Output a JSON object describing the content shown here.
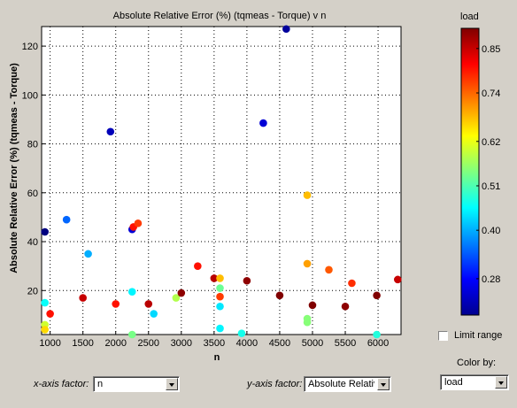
{
  "plot": {
    "title": "Absolute Relative Error (%) (tqmeas - Torque) v n",
    "xlabel": "n",
    "ylabel": "Absolute Relative Error (%) (tqmeas - Torque)"
  },
  "colorbar": {
    "title": "load",
    "range": [
      0.19,
      0.9
    ],
    "ticks": [
      0.28,
      0.4,
      0.51,
      0.62,
      0.74,
      0.85
    ],
    "tick_labels": [
      "0.28",
      "0.40",
      "0.51",
      "0.62",
      "0.74",
      "0.85"
    ]
  },
  "controls": {
    "limit_range_label": "Limit range",
    "limit_range_checked": false,
    "color_by_label": "Color by:",
    "color_by_value": "load",
    "x_factor_label": "x-axis factor:",
    "x_factor_value": "n",
    "y_factor_label": "y-axis factor:",
    "y_factor_value": "Absolute Relative Error (%) (tqmeas - Torque)"
  },
  "chart_data": {
    "type": "scatter",
    "title": "Absolute Relative Error (%) (tqmeas - Torque) v n",
    "xlabel": "n",
    "ylabel": "Absolute Relative Error (%) (tqmeas - Torque)",
    "xlim": [
      870,
      6350
    ],
    "ylim": [
      2,
      128
    ],
    "xticks": [
      1000,
      1500,
      2000,
      2500,
      3000,
      3500,
      4000,
      4500,
      5000,
      5500,
      6000
    ],
    "yticks": [
      20,
      40,
      60,
      80,
      100,
      120
    ],
    "grid": true,
    "color_variable": "load",
    "points": [
      {
        "x": 920,
        "y": 44,
        "load": 0.19
      },
      {
        "x": 920,
        "y": 15,
        "load": 0.46
      },
      {
        "x": 920,
        "y": 6,
        "load": 0.6
      },
      {
        "x": 920,
        "y": 4,
        "load": 0.66
      },
      {
        "x": 1000,
        "y": 10.5,
        "load": 0.8
      },
      {
        "x": 1250,
        "y": 49,
        "load": 0.35
      },
      {
        "x": 1500,
        "y": 17,
        "load": 0.85
      },
      {
        "x": 1580,
        "y": 35,
        "load": 0.4
      },
      {
        "x": 1920,
        "y": 85,
        "load": 0.23
      },
      {
        "x": 2000,
        "y": 14.5,
        "load": 0.8
      },
      {
        "x": 2250,
        "y": 45,
        "load": 0.25
      },
      {
        "x": 2250,
        "y": 19.5,
        "load": 0.45
      },
      {
        "x": 2250,
        "y": 2,
        "load": 0.54
      },
      {
        "x": 2270,
        "y": 46,
        "load": 0.8
      },
      {
        "x": 2340,
        "y": 47.5,
        "load": 0.77
      },
      {
        "x": 2500,
        "y": 14.5,
        "load": 0.86
      },
      {
        "x": 2580,
        "y": 10.5,
        "load": 0.43
      },
      {
        "x": 2920,
        "y": 17,
        "load": 0.58
      },
      {
        "x": 3000,
        "y": 19,
        "load": 0.89
      },
      {
        "x": 3250,
        "y": 30,
        "load": 0.8
      },
      {
        "x": 3500,
        "y": 25,
        "load": 0.86
      },
      {
        "x": 3590,
        "y": 25,
        "load": 0.68
      },
      {
        "x": 3590,
        "y": 21,
        "load": 0.53
      },
      {
        "x": 3590,
        "y": 17.5,
        "load": 0.77
      },
      {
        "x": 3590,
        "y": 13.5,
        "load": 0.44
      },
      {
        "x": 3590,
        "y": 4.5,
        "load": 0.45
      },
      {
        "x": 3920,
        "y": 2.5,
        "load": 0.47
      },
      {
        "x": 4000,
        "y": 24,
        "load": 0.89
      },
      {
        "x": 4250,
        "y": 88.5,
        "load": 0.25
      },
      {
        "x": 4500,
        "y": 18,
        "load": 0.9
      },
      {
        "x": 4600,
        "y": 127,
        "load": 0.21
      },
      {
        "x": 4920,
        "y": 59,
        "load": 0.68
      },
      {
        "x": 4920,
        "y": 31,
        "load": 0.7
      },
      {
        "x": 4920,
        "y": 8.5,
        "load": 0.55
      },
      {
        "x": 4920,
        "y": 7,
        "load": 0.55
      },
      {
        "x": 5000,
        "y": 14,
        "load": 0.9
      },
      {
        "x": 5250,
        "y": 28.5,
        "load": 0.75
      },
      {
        "x": 5500,
        "y": 13.5,
        "load": 0.89
      },
      {
        "x": 5600,
        "y": 23,
        "load": 0.78
      },
      {
        "x": 5980,
        "y": 18,
        "load": 0.9
      },
      {
        "x": 5980,
        "y": 2,
        "load": 0.48
      },
      {
        "x": 6300,
        "y": 24.5,
        "load": 0.85
      }
    ]
  }
}
